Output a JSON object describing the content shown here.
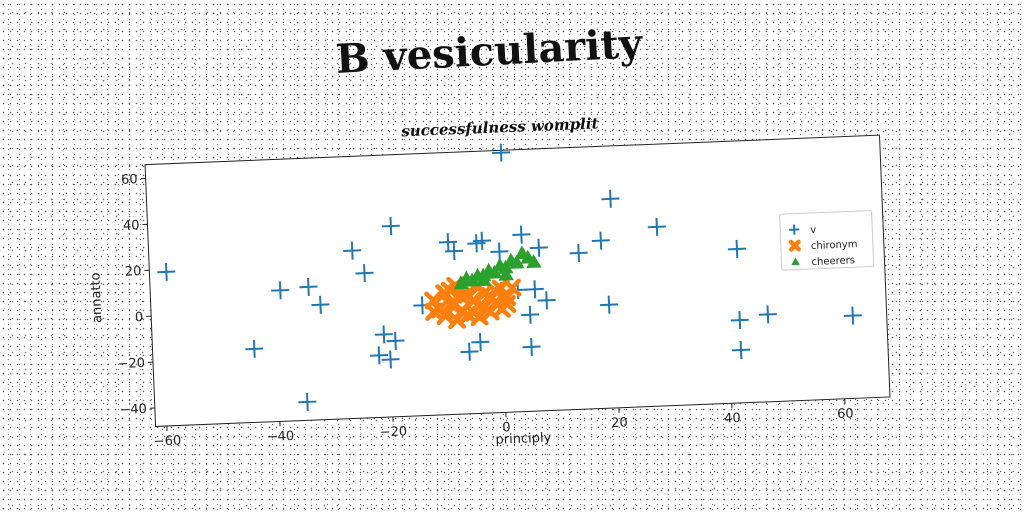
{
  "title": "B vesicularity",
  "chart_data": {
    "type": "scatter",
    "subtitle": "successfulness womplit",
    "xlabel": "principly",
    "ylabel": "annatto",
    "xlim": [
      -62,
      68
    ],
    "ylim": [
      -48,
      66
    ],
    "xticks": [
      -60,
      -40,
      -20,
      0,
      20,
      40,
      60
    ],
    "yticks": [
      -40,
      -20,
      0,
      20,
      40,
      60
    ],
    "grid": false,
    "legend_position": "right",
    "series": [
      {
        "name": "v",
        "marker": "plus",
        "color": "#1f77b4",
        "points": [
          [
            1,
            65
          ],
          [
            20,
            43
          ],
          [
            -19,
            35
          ],
          [
            28,
            30
          ],
          [
            -26,
            25
          ],
          [
            4,
            29
          ],
          [
            -9,
            27
          ],
          [
            -4,
            26
          ],
          [
            -3,
            27
          ],
          [
            -8,
            23
          ],
          [
            7,
            23
          ],
          [
            18,
            25
          ],
          [
            14,
            20
          ],
          [
            0,
            22
          ],
          [
            -59,
            19
          ],
          [
            42,
            19
          ],
          [
            -24,
            15
          ],
          [
            -34,
            10
          ],
          [
            -39,
            9
          ],
          [
            -32,
            2
          ],
          [
            3,
            5
          ],
          [
            6,
            5
          ],
          [
            8,
            0
          ],
          [
            -14,
            0
          ],
          [
            5,
            -6
          ],
          [
            19,
            -3
          ],
          [
            42,
            -12
          ],
          [
            47,
            -10
          ],
          [
            62,
            -12
          ],
          [
            -44,
            -16
          ],
          [
            -21,
            -12
          ],
          [
            -19,
            -15
          ],
          [
            -4,
            -17
          ],
          [
            -22,
            -21
          ],
          [
            -20,
            -23
          ],
          [
            -6,
            -21
          ],
          [
            5,
            -20
          ],
          [
            42,
            -25
          ],
          [
            -35,
            -40
          ]
        ]
      },
      {
        "name": "chironym",
        "marker": "x",
        "color": "#ff7f0e",
        "points": [
          [
            -12,
            2
          ],
          [
            -10,
            5
          ],
          [
            -8,
            8
          ],
          [
            -6,
            4
          ],
          [
            -4,
            7
          ],
          [
            -2,
            3
          ],
          [
            0,
            6
          ],
          [
            -11,
            -2
          ],
          [
            -9,
            0
          ],
          [
            -7,
            -3
          ],
          [
            -5,
            1
          ],
          [
            -3,
            -2
          ],
          [
            -1,
            0
          ],
          [
            1,
            2
          ],
          [
            2,
            6
          ],
          [
            -10,
            -5
          ],
          [
            -8,
            -7
          ],
          [
            -6,
            -5
          ],
          [
            -4,
            -6
          ],
          [
            -2,
            -4
          ],
          [
            0,
            -3
          ],
          [
            -12,
            -3
          ],
          [
            -7,
            3
          ],
          [
            -3,
            4
          ],
          [
            -5,
            -4
          ],
          [
            1,
            -1
          ],
          [
            -9,
            6
          ],
          [
            -1,
            5
          ]
        ]
      },
      {
        "name": "cheerers",
        "marker": "triangle",
        "color": "#2ca02c",
        "points": [
          [
            -7,
            9
          ],
          [
            -5,
            10
          ],
          [
            -3,
            12
          ],
          [
            -1,
            13
          ],
          [
            1,
            15
          ],
          [
            3,
            17
          ],
          [
            5,
            19
          ],
          [
            4,
            21
          ],
          [
            2,
            18
          ],
          [
            0,
            16
          ],
          [
            -2,
            14
          ],
          [
            -4,
            12
          ],
          [
            -6,
            11
          ],
          [
            6,
            17
          ],
          [
            -3,
            10
          ],
          [
            1,
            12
          ]
        ]
      }
    ]
  }
}
